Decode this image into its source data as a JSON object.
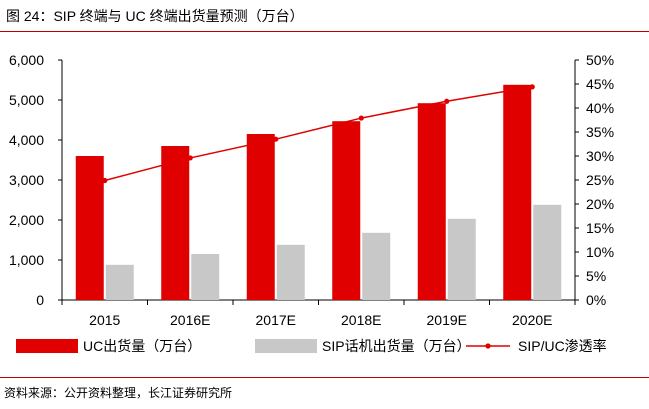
{
  "header": {
    "title": "图 24：SIP 终端与 UC 终端出货量预测（万台）"
  },
  "footer": {
    "source": "资料来源：公开资料整理，长江证券研究所"
  },
  "colors": {
    "uc": "#e00000",
    "sip": "#c8c8c8",
    "ratio": "#e00000",
    "rule": "#c00000"
  },
  "chart_data": {
    "type": "bar",
    "categories": [
      "2015",
      "2016E",
      "2017E",
      "2018E",
      "2019E",
      "2020E"
    ],
    "series": [
      {
        "name": "UC出货量（万台）",
        "kind": "bar",
        "axis": "left",
        "values": [
          3600,
          3850,
          4150,
          4470,
          4920,
          5380
        ]
      },
      {
        "name": "SIP话机出货量（万台）",
        "kind": "bar",
        "axis": "left",
        "values": [
          880,
          1150,
          1380,
          1680,
          2030,
          2380
        ]
      },
      {
        "name": "SIP/UC渗透率",
        "kind": "line",
        "axis": "right",
        "values": [
          24.9,
          29.6,
          33.5,
          37.9,
          41.4,
          44.4
        ]
      }
    ],
    "left_axis": {
      "min": 0,
      "max": 6000,
      "ticks": [
        0,
        1000,
        2000,
        3000,
        4000,
        5000,
        6000
      ],
      "tick_labels": [
        "0",
        "1,000",
        "2,000",
        "3,000",
        "4,000",
        "5,000",
        "6,000"
      ]
    },
    "right_axis": {
      "min": 0,
      "max": 50,
      "ticks": [
        0,
        5,
        10,
        15,
        20,
        25,
        30,
        35,
        40,
        45,
        50
      ],
      "tick_labels": [
        "0%",
        "5%",
        "10%",
        "15%",
        "20%",
        "25%",
        "30%",
        "35%",
        "40%",
        "45%",
        "50%"
      ]
    },
    "legend_position": "bottom",
    "grid": false
  }
}
